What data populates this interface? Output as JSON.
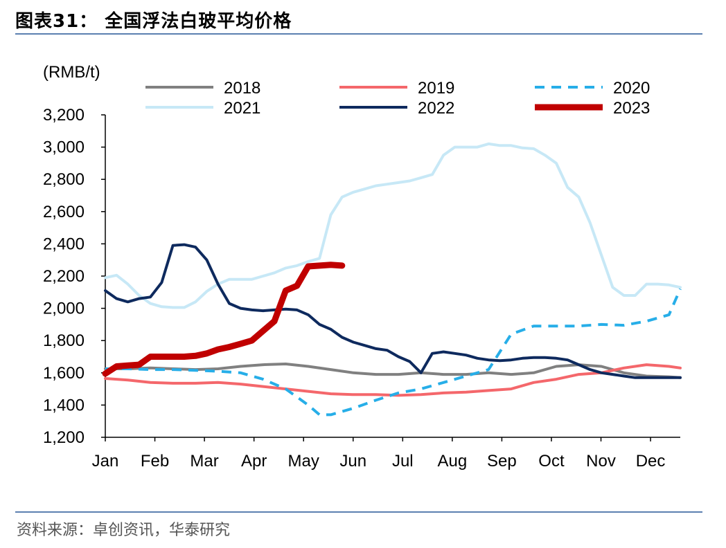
{
  "header": {
    "title": "图表31：  全国浮法白玻平均价格"
  },
  "footer": {
    "source": "资料来源：卓创资讯，华泰研究"
  },
  "chart_data": {
    "type": "line",
    "unit_label": "(RMB/t)",
    "ylim": [
      1200,
      3200
    ],
    "yticks": [
      1200,
      1400,
      1600,
      1800,
      2000,
      2200,
      2400,
      2600,
      2800,
      3000,
      3200
    ],
    "ytick_labels": [
      "1,200",
      "1,400",
      "1,600",
      "1,800",
      "2,000",
      "2,200",
      "2,400",
      "2,600",
      "2,800",
      "3,000",
      "3,200"
    ],
    "months": [
      "Jan",
      "Feb",
      "Mar",
      "Apr",
      "May",
      "Jun",
      "Jul",
      "Aug",
      "Sep",
      "Oct",
      "Nov",
      "Dec"
    ],
    "xlim": [
      1,
      52
    ],
    "legend_position": "top",
    "series": [
      {
        "name": "2018",
        "color": "#808080",
        "style": "solid",
        "width": 4,
        "x": [
          1,
          3,
          5,
          7,
          9,
          11,
          13,
          15,
          17,
          19,
          21,
          23,
          25,
          27,
          29,
          31,
          33,
          35,
          37,
          39,
          41,
          43,
          45,
          47,
          49,
          51,
          52
        ],
        "y": [
          1625,
          1625,
          1630,
          1625,
          1620,
          1625,
          1640,
          1650,
          1655,
          1640,
          1620,
          1600,
          1590,
          1590,
          1600,
          1590,
          1590,
          1600,
          1590,
          1600,
          1640,
          1650,
          1640,
          1600,
          1580,
          1575,
          1570
        ]
      },
      {
        "name": "2019",
        "color": "#f4676b",
        "style": "solid",
        "width": 4,
        "x": [
          1,
          3,
          5,
          7,
          9,
          11,
          13,
          15,
          17,
          19,
          21,
          23,
          25,
          27,
          29,
          31,
          33,
          35,
          37,
          39,
          41,
          43,
          45,
          47,
          49,
          51,
          52
        ],
        "y": [
          1565,
          1555,
          1540,
          1535,
          1535,
          1540,
          1530,
          1515,
          1500,
          1485,
          1470,
          1465,
          1465,
          1460,
          1465,
          1475,
          1480,
          1490,
          1500,
          1540,
          1560,
          1590,
          1600,
          1630,
          1650,
          1640,
          1630
        ]
      },
      {
        "name": "2020",
        "color": "#27aee8",
        "style": "dashed",
        "width": 4,
        "x": [
          1,
          3,
          5,
          7,
          9,
          11,
          13,
          15,
          17,
          19,
          20,
          21,
          23,
          25,
          27,
          29,
          31,
          33,
          35,
          37,
          39,
          41,
          43,
          45,
          47,
          49,
          51,
          52
        ],
        "y": [
          1625,
          1625,
          1620,
          1620,
          1615,
          1610,
          1600,
          1560,
          1500,
          1400,
          1340,
          1340,
          1380,
          1430,
          1475,
          1500,
          1540,
          1580,
          1620,
          1840,
          1890,
          1890,
          1890,
          1900,
          1895,
          1920,
          1960,
          2120
        ]
      },
      {
        "name": "2021",
        "color": "#c7e8f6",
        "style": "solid",
        "width": 4,
        "x": [
          1,
          2,
          3,
          4,
          5,
          6,
          7,
          8,
          9,
          10,
          11,
          12,
          13,
          14,
          15,
          16,
          17,
          18,
          19,
          20,
          21,
          22,
          23,
          24,
          25,
          26,
          27,
          28,
          29,
          30,
          31,
          32,
          33,
          34,
          35,
          36,
          37,
          38,
          39,
          40,
          41,
          42,
          43,
          44,
          45,
          46,
          47,
          48,
          49,
          50,
          51,
          52
        ],
        "y": [
          2190,
          2205,
          2150,
          2080,
          2030,
          2010,
          2005,
          2005,
          2040,
          2105,
          2150,
          2180,
          2180,
          2180,
          2200,
          2220,
          2250,
          2265,
          2290,
          2310,
          2580,
          2690,
          2720,
          2740,
          2760,
          2770,
          2780,
          2790,
          2810,
          2830,
          2950,
          3000,
          3000,
          3000,
          3020,
          3010,
          3010,
          2995,
          2990,
          2950,
          2900,
          2750,
          2690,
          2530,
          2330,
          2130,
          2080,
          2080,
          2150,
          2150,
          2145,
          2130
        ]
      },
      {
        "name": "2022",
        "color": "#0e2a5e",
        "style": "solid",
        "width": 4,
        "x": [
          1,
          2,
          3,
          4,
          5,
          6,
          7,
          8,
          9,
          10,
          11,
          12,
          13,
          14,
          15,
          16,
          17,
          18,
          19,
          20,
          21,
          22,
          23,
          24,
          25,
          26,
          27,
          28,
          29,
          30,
          31,
          32,
          33,
          34,
          35,
          36,
          37,
          38,
          39,
          40,
          41,
          42,
          43,
          44,
          45,
          46,
          47,
          48,
          49,
          50,
          51,
          52
        ],
        "y": [
          2110,
          2060,
          2040,
          2060,
          2070,
          2160,
          2390,
          2395,
          2380,
          2300,
          2150,
          2030,
          2000,
          1990,
          1985,
          1990,
          1995,
          1990,
          1960,
          1900,
          1870,
          1820,
          1790,
          1770,
          1750,
          1740,
          1700,
          1670,
          1600,
          1720,
          1730,
          1720,
          1710,
          1690,
          1680,
          1675,
          1680,
          1690,
          1695,
          1695,
          1690,
          1680,
          1650,
          1620,
          1600,
          1590,
          1580,
          1570,
          1570,
          1570,
          1570,
          1570
        ]
      },
      {
        "name": "2023",
        "color": "#c00000",
        "style": "solid",
        "width": 9,
        "x": [
          1,
          2,
          3,
          4,
          5,
          6,
          7,
          8,
          9,
          10,
          11,
          12,
          13,
          14,
          15,
          16,
          17,
          18,
          19,
          20,
          21,
          22
        ],
        "y": [
          1595,
          1640,
          1645,
          1650,
          1700,
          1700,
          1700,
          1700,
          1705,
          1720,
          1745,
          1760,
          1780,
          1800,
          1860,
          1920,
          2110,
          2140,
          2260,
          2265,
          2270,
          2265
        ]
      }
    ]
  }
}
